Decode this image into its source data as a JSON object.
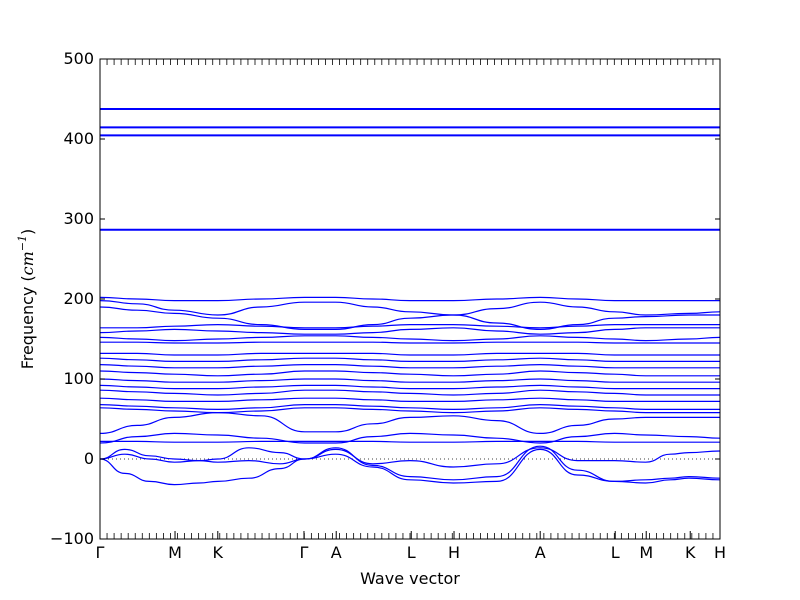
{
  "chart_data": {
    "type": "line",
    "title": "",
    "xlabel": "Wave vector",
    "ylabel": "Frequency",
    "ylabel_unit_open": "(",
    "ylabel_unit": "cm",
    "ylabel_unit_exp": "−1",
    "ylabel_unit_close": ")",
    "ylim": [
      -100,
      500
    ],
    "yticks": [
      -100,
      0,
      100,
      200,
      300,
      400,
      500
    ],
    "ytick_labels": [
      "−100",
      "0",
      "100",
      "200",
      "300",
      "400",
      "500"
    ],
    "xlim": [
      0,
      1
    ],
    "xticks": [
      {
        "pos": 0.0,
        "label": "Γ"
      },
      {
        "pos": 0.121,
        "label": "M"
      },
      {
        "pos": 0.19,
        "label": "K"
      },
      {
        "pos": 0.329,
        "label": "Γ"
      },
      {
        "pos": 0.381,
        "label": "A"
      },
      {
        "pos": 0.502,
        "label": "L"
      },
      {
        "pos": 0.571,
        "label": "H"
      },
      {
        "pos": 0.71,
        "label": "A"
      },
      {
        "pos": 0.831,
        "label": "L"
      },
      {
        "pos": 0.881,
        "label": "M"
      },
      {
        "pos": 0.952,
        "label": "K"
      },
      {
        "pos": 1.0,
        "label": "H"
      }
    ],
    "zero_line": 0,
    "line_color": "#0000ff",
    "flat_bands": [
      437,
      438,
      414,
      415,
      405,
      404,
      287,
      286
    ],
    "series": [
      {
        "x": [
          0,
          0.06,
          0.12,
          0.19,
          0.26,
          0.33,
          0.38,
          0.44,
          0.5,
          0.57,
          0.64,
          0.71,
          0.77,
          0.83,
          0.88,
          0.95,
          1
        ],
        "y": [
          202,
          200,
          198,
          198,
          200,
          202,
          202,
          200,
          198,
          198,
          200,
          202,
          200,
          198,
          198,
          198,
          198
        ]
      },
      {
        "x": [
          0,
          0.06,
          0.12,
          0.19,
          0.26,
          0.33,
          0.38,
          0.44,
          0.5,
          0.57,
          0.64,
          0.71,
          0.77,
          0.83,
          0.88,
          0.95,
          1
        ],
        "y": [
          198,
          194,
          186,
          180,
          190,
          196,
          196,
          190,
          184,
          180,
          188,
          196,
          190,
          184,
          180,
          182,
          184
        ]
      },
      {
        "x": [
          0,
          0.06,
          0.12,
          0.19,
          0.26,
          0.33,
          0.38,
          0.44,
          0.5,
          0.57,
          0.64,
          0.71,
          0.77,
          0.83,
          0.88,
          0.95,
          1
        ],
        "y": [
          190,
          186,
          182,
          176,
          168,
          162,
          162,
          168,
          176,
          180,
          170,
          162,
          168,
          176,
          178,
          180,
          180
        ]
      },
      {
        "x": [
          0,
          0.06,
          0.12,
          0.19,
          0.26,
          0.33,
          0.38,
          0.44,
          0.5,
          0.57,
          0.64,
          0.71,
          0.77,
          0.83,
          0.88,
          0.95,
          1
        ],
        "y": [
          164,
          164,
          166,
          168,
          166,
          164,
          164,
          166,
          168,
          168,
          166,
          164,
          166,
          168,
          168,
          168,
          168
        ]
      },
      {
        "x": [
          0,
          0.06,
          0.12,
          0.19,
          0.26,
          0.33,
          0.38,
          0.44,
          0.5,
          0.57,
          0.64,
          0.71,
          0.77,
          0.83,
          0.88,
          0.95,
          1
        ],
        "y": [
          158,
          160,
          162,
          160,
          158,
          156,
          156,
          158,
          162,
          164,
          160,
          156,
          158,
          162,
          164,
          164,
          164
        ]
      },
      {
        "x": [
          0,
          0.06,
          0.12,
          0.19,
          0.26,
          0.33,
          0.38,
          0.44,
          0.5,
          0.57,
          0.64,
          0.71,
          0.77,
          0.83,
          0.88,
          0.95,
          1
        ],
        "y": [
          152,
          150,
          148,
          150,
          152,
          154,
          154,
          152,
          150,
          148,
          150,
          154,
          152,
          150,
          148,
          150,
          152
        ]
      },
      {
        "x": [
          0,
          0.06,
          0.12,
          0.19,
          0.26,
          0.33,
          0.38,
          0.44,
          0.5,
          0.57,
          0.64,
          0.71,
          0.77,
          0.83,
          0.88,
          0.95,
          1
        ],
        "y": [
          146,
          146,
          145,
          145,
          146,
          146,
          146,
          146,
          145,
          145,
          146,
          146,
          146,
          145,
          145,
          145,
          145
        ]
      },
      {
        "x": [
          0,
          0.06,
          0.12,
          0.19,
          0.26,
          0.33,
          0.38,
          0.44,
          0.5,
          0.57,
          0.64,
          0.71,
          0.77,
          0.83,
          0.88,
          0.95,
          1
        ],
        "y": [
          132,
          132,
          130,
          130,
          132,
          132,
          132,
          132,
          130,
          130,
          132,
          132,
          132,
          130,
          130,
          130,
          130
        ]
      },
      {
        "x": [
          0,
          0.06,
          0.12,
          0.19,
          0.26,
          0.33,
          0.38,
          0.44,
          0.5,
          0.57,
          0.64,
          0.71,
          0.77,
          0.83,
          0.88,
          0.95,
          1
        ],
        "y": [
          126,
          124,
          122,
          122,
          124,
          126,
          126,
          124,
          122,
          122,
          124,
          126,
          124,
          122,
          122,
          122,
          122
        ]
      },
      {
        "x": [
          0,
          0.06,
          0.12,
          0.19,
          0.26,
          0.33,
          0.38,
          0.44,
          0.5,
          0.57,
          0.64,
          0.71,
          0.77,
          0.83,
          0.88,
          0.95,
          1
        ],
        "y": [
          118,
          116,
          114,
          114,
          116,
          118,
          118,
          116,
          114,
          114,
          116,
          118,
          116,
          114,
          114,
          114,
          114
        ]
      },
      {
        "x": [
          0,
          0.06,
          0.12,
          0.19,
          0.26,
          0.33,
          0.38,
          0.44,
          0.5,
          0.57,
          0.64,
          0.71,
          0.77,
          0.83,
          0.88,
          0.95,
          1
        ],
        "y": [
          110,
          108,
          106,
          104,
          106,
          110,
          110,
          108,
          106,
          104,
          106,
          110,
          108,
          106,
          104,
          104,
          104
        ]
      },
      {
        "x": [
          0,
          0.06,
          0.12,
          0.19,
          0.26,
          0.33,
          0.38,
          0.44,
          0.5,
          0.57,
          0.64,
          0.71,
          0.77,
          0.83,
          0.88,
          0.95,
          1
        ],
        "y": [
          100,
          98,
          96,
          96,
          98,
          100,
          100,
          98,
          96,
          96,
          98,
          100,
          98,
          96,
          96,
          96,
          96
        ]
      },
      {
        "x": [
          0,
          0.06,
          0.12,
          0.19,
          0.26,
          0.33,
          0.38,
          0.44,
          0.5,
          0.57,
          0.64,
          0.71,
          0.77,
          0.83,
          0.88,
          0.95,
          1
        ],
        "y": [
          92,
          90,
          88,
          88,
          90,
          92,
          92,
          90,
          88,
          88,
          90,
          92,
          90,
          88,
          88,
          88,
          88
        ]
      },
      {
        "x": [
          0,
          0.06,
          0.12,
          0.19,
          0.26,
          0.33,
          0.38,
          0.44,
          0.5,
          0.57,
          0.64,
          0.71,
          0.77,
          0.83,
          0.88,
          0.95,
          1
        ],
        "y": [
          86,
          84,
          82,
          80,
          82,
          86,
          86,
          84,
          82,
          80,
          82,
          86,
          84,
          82,
          80,
          80,
          80
        ]
      },
      {
        "x": [
          0,
          0.06,
          0.12,
          0.19,
          0.26,
          0.33,
          0.38,
          0.44,
          0.5,
          0.57,
          0.64,
          0.71,
          0.77,
          0.83,
          0.88,
          0.95,
          1
        ],
        "y": [
          76,
          74,
          72,
          72,
          74,
          76,
          76,
          74,
          72,
          72,
          74,
          76,
          74,
          72,
          72,
          72,
          72
        ]
      },
      {
        "x": [
          0,
          0.06,
          0.12,
          0.19,
          0.26,
          0.33,
          0.38,
          0.44,
          0.5,
          0.57,
          0.64,
          0.71,
          0.77,
          0.83,
          0.88,
          0.95,
          1
        ],
        "y": [
          68,
          66,
          64,
          62,
          64,
          68,
          68,
          66,
          64,
          62,
          64,
          68,
          66,
          64,
          62,
          62,
          62
        ]
      },
      {
        "x": [
          0,
          0.06,
          0.12,
          0.19,
          0.26,
          0.33,
          0.38,
          0.44,
          0.5,
          0.57,
          0.64,
          0.71,
          0.77,
          0.83,
          0.88,
          0.95,
          1
        ],
        "y": [
          64,
          62,
          60,
          58,
          60,
          64,
          64,
          62,
          60,
          58,
          60,
          64,
          62,
          60,
          58,
          58,
          58
        ]
      },
      {
        "x": [
          0,
          0.06,
          0.12,
          0.19,
          0.26,
          0.33,
          0.38,
          0.44,
          0.5,
          0.57,
          0.64,
          0.71,
          0.77,
          0.83,
          0.88,
          0.95,
          1
        ],
        "y": [
          32,
          42,
          52,
          58,
          54,
          34,
          34,
          44,
          52,
          54,
          48,
          32,
          42,
          50,
          52,
          52,
          52
        ]
      },
      {
        "x": [
          0,
          0.06,
          0.12,
          0.19,
          0.26,
          0.33,
          0.38,
          0.44,
          0.5,
          0.57,
          0.64,
          0.71,
          0.77,
          0.83,
          0.88,
          0.95,
          1
        ],
        "y": [
          22,
          22,
          21,
          21,
          22,
          22,
          22,
          22,
          21,
          21,
          22,
          22,
          22,
          21,
          21,
          21,
          21
        ]
      },
      {
        "x": [
          0,
          0.06,
          0.12,
          0.19,
          0.26,
          0.33,
          0.38,
          0.44,
          0.5,
          0.57,
          0.64,
          0.71,
          0.77,
          0.83,
          0.88,
          0.95,
          1
        ],
        "y": [
          20,
          28,
          32,
          30,
          26,
          20,
          20,
          28,
          32,
          30,
          26,
          20,
          28,
          32,
          30,
          28,
          26
        ]
      },
      {
        "x": [
          0,
          0.04,
          0.08,
          0.12,
          0.16,
          0.19,
          0.24,
          0.29,
          0.33,
          0.38,
          0.44,
          0.5,
          0.57,
          0.64,
          0.71,
          0.77,
          0.83,
          0.88,
          0.92,
          0.95,
          1
        ],
        "y": [
          0,
          -18,
          -28,
          -32,
          -30,
          -28,
          -24,
          -12,
          0,
          14,
          -8,
          -22,
          -26,
          -22,
          16,
          -14,
          -28,
          -30,
          -26,
          -24,
          -26
        ]
      },
      {
        "x": [
          0,
          0.04,
          0.08,
          0.12,
          0.16,
          0.19,
          0.24,
          0.29,
          0.33,
          0.38,
          0.44,
          0.5,
          0.57,
          0.64,
          0.71,
          0.77,
          0.83,
          0.88,
          0.92,
          0.95,
          1
        ],
        "y": [
          0,
          6,
          0,
          -4,
          -2,
          -4,
          -2,
          -6,
          0,
          6,
          -10,
          -26,
          -30,
          -28,
          12,
          -20,
          -28,
          -26,
          -24,
          -22,
          -24
        ]
      },
      {
        "x": [
          0,
          0.04,
          0.08,
          0.12,
          0.16,
          0.19,
          0.24,
          0.29,
          0.33,
          0.38,
          0.44,
          0.5,
          0.57,
          0.64,
          0.71,
          0.77,
          0.83,
          0.88,
          0.92,
          0.95,
          1
        ],
        "y": [
          0,
          12,
          4,
          0,
          -2,
          0,
          14,
          8,
          0,
          12,
          -6,
          -2,
          -10,
          -6,
          14,
          -2,
          -2,
          -4,
          6,
          8,
          10
        ]
      }
    ]
  }
}
